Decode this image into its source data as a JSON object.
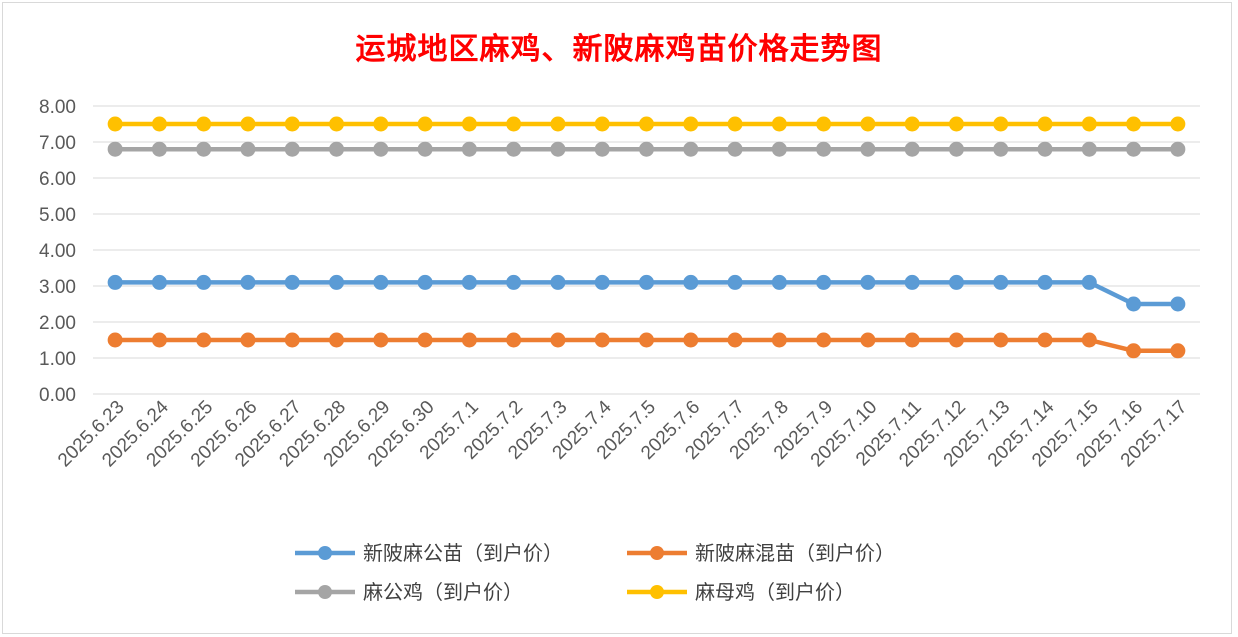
{
  "chart_data": {
    "type": "line",
    "title": "运城地区麻鸡、新陂麻鸡苗价格走势图",
    "categories": [
      "2025.6.23",
      "2025.6.24",
      "2025.6.25",
      "2025.6.26",
      "2025.6.27",
      "2025.6.28",
      "2025.6.29",
      "2025.6.30",
      "2025.7.1",
      "2025.7.2",
      "2025.7.3",
      "2025.7.4",
      "2025.7.5",
      "2025.7.6",
      "2025.7.7",
      "2025.7.8",
      "2025.7.9",
      "2025.7.10",
      "2025.7.11",
      "2025.7.12",
      "2025.7.13",
      "2025.7.14",
      "2025.7.15",
      "2025.7.16",
      "2025.7.17"
    ],
    "yticks": [
      "0.00",
      "1.00",
      "2.00",
      "3.00",
      "4.00",
      "5.00",
      "6.00",
      "7.00",
      "8.00"
    ],
    "ylim": [
      0,
      8
    ],
    "grid": true,
    "legend_position": "bottom",
    "series": [
      {
        "name": "新陂麻公苗（到户价）",
        "color": "#5b9bd5",
        "values": [
          3.1,
          3.1,
          3.1,
          3.1,
          3.1,
          3.1,
          3.1,
          3.1,
          3.1,
          3.1,
          3.1,
          3.1,
          3.1,
          3.1,
          3.1,
          3.1,
          3.1,
          3.1,
          3.1,
          3.1,
          3.1,
          3.1,
          3.1,
          2.5,
          2.5
        ]
      },
      {
        "name": "新陂麻混苗（到户价）",
        "color": "#ed7d31",
        "values": [
          1.5,
          1.5,
          1.5,
          1.5,
          1.5,
          1.5,
          1.5,
          1.5,
          1.5,
          1.5,
          1.5,
          1.5,
          1.5,
          1.5,
          1.5,
          1.5,
          1.5,
          1.5,
          1.5,
          1.5,
          1.5,
          1.5,
          1.5,
          1.2,
          1.2
        ]
      },
      {
        "name": "麻公鸡（到户价）",
        "color": "#a5a5a5",
        "values": [
          6.8,
          6.8,
          6.8,
          6.8,
          6.8,
          6.8,
          6.8,
          6.8,
          6.8,
          6.8,
          6.8,
          6.8,
          6.8,
          6.8,
          6.8,
          6.8,
          6.8,
          6.8,
          6.8,
          6.8,
          6.8,
          6.8,
          6.8,
          6.8,
          6.8
        ]
      },
      {
        "name": "麻母鸡（到户价）",
        "color": "#ffc000",
        "values": [
          7.5,
          7.5,
          7.5,
          7.5,
          7.5,
          7.5,
          7.5,
          7.5,
          7.5,
          7.5,
          7.5,
          7.5,
          7.5,
          7.5,
          7.5,
          7.5,
          7.5,
          7.5,
          7.5,
          7.5,
          7.5,
          7.5,
          7.5,
          7.5,
          7.5
        ]
      }
    ]
  }
}
